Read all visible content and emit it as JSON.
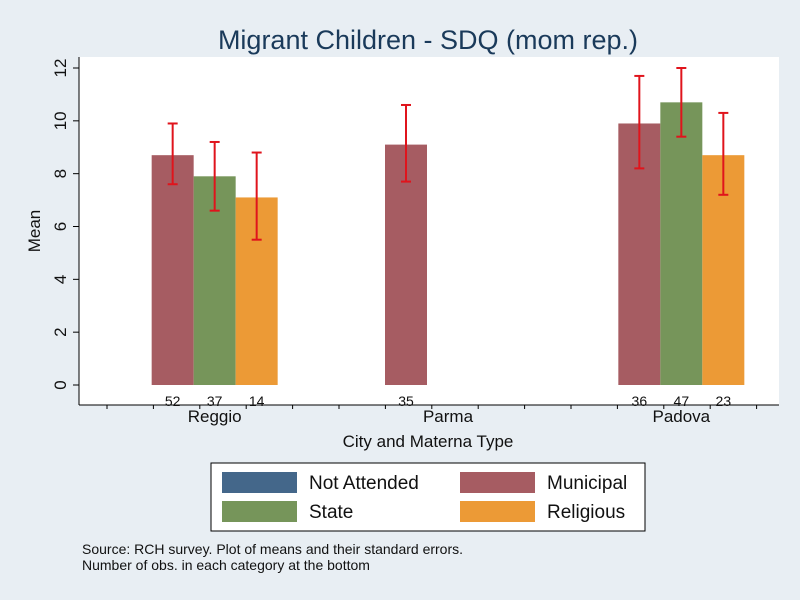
{
  "chart_data": {
    "type": "bar",
    "title": "Migrant Children - SDQ (mom rep.)",
    "xlabel": "City and Materna Type",
    "ylabel": "Mean",
    "ylim": [
      0,
      12
    ],
    "yticks": [
      "0",
      "2",
      "4",
      "6",
      "8",
      "10",
      "12"
    ],
    "grid": false,
    "legend_position": "bottom",
    "categories": [
      "Reggio",
      "Parma",
      "Padova"
    ],
    "series": [
      {
        "name": "Not Attended",
        "color": "#44678a",
        "values": [
          null,
          null,
          null
        ],
        "se_low": [
          null,
          null,
          null
        ],
        "se_high": [
          null,
          null,
          null
        ],
        "n": [
          "",
          "",
          ""
        ]
      },
      {
        "name": "Municipal",
        "color": "#a65c62",
        "values": [
          8.7,
          9.1,
          9.9
        ],
        "se_low": [
          7.6,
          7.7,
          8.2
        ],
        "se_high": [
          9.9,
          10.6,
          11.7
        ],
        "n": [
          "52",
          "35",
          "36"
        ]
      },
      {
        "name": "State",
        "color": "#76955a",
        "values": [
          7.9,
          null,
          10.7
        ],
        "se_low": [
          6.6,
          null,
          9.4
        ],
        "se_high": [
          9.2,
          null,
          12.0
        ],
        "n": [
          "37",
          "",
          "47"
        ]
      },
      {
        "name": "Religious",
        "color": "#ec9a36",
        "values": [
          7.1,
          null,
          8.7
        ],
        "se_low": [
          5.5,
          null,
          7.2
        ],
        "se_high": [
          8.8,
          null,
          10.3
        ],
        "n": [
          "14",
          "",
          "23"
        ]
      }
    ],
    "error_bar_color": "#e0141c",
    "notes": [
      "Source: RCH survey. Plot of means and their standard errors.",
      "Number of obs. in each category at the bottom"
    ]
  }
}
